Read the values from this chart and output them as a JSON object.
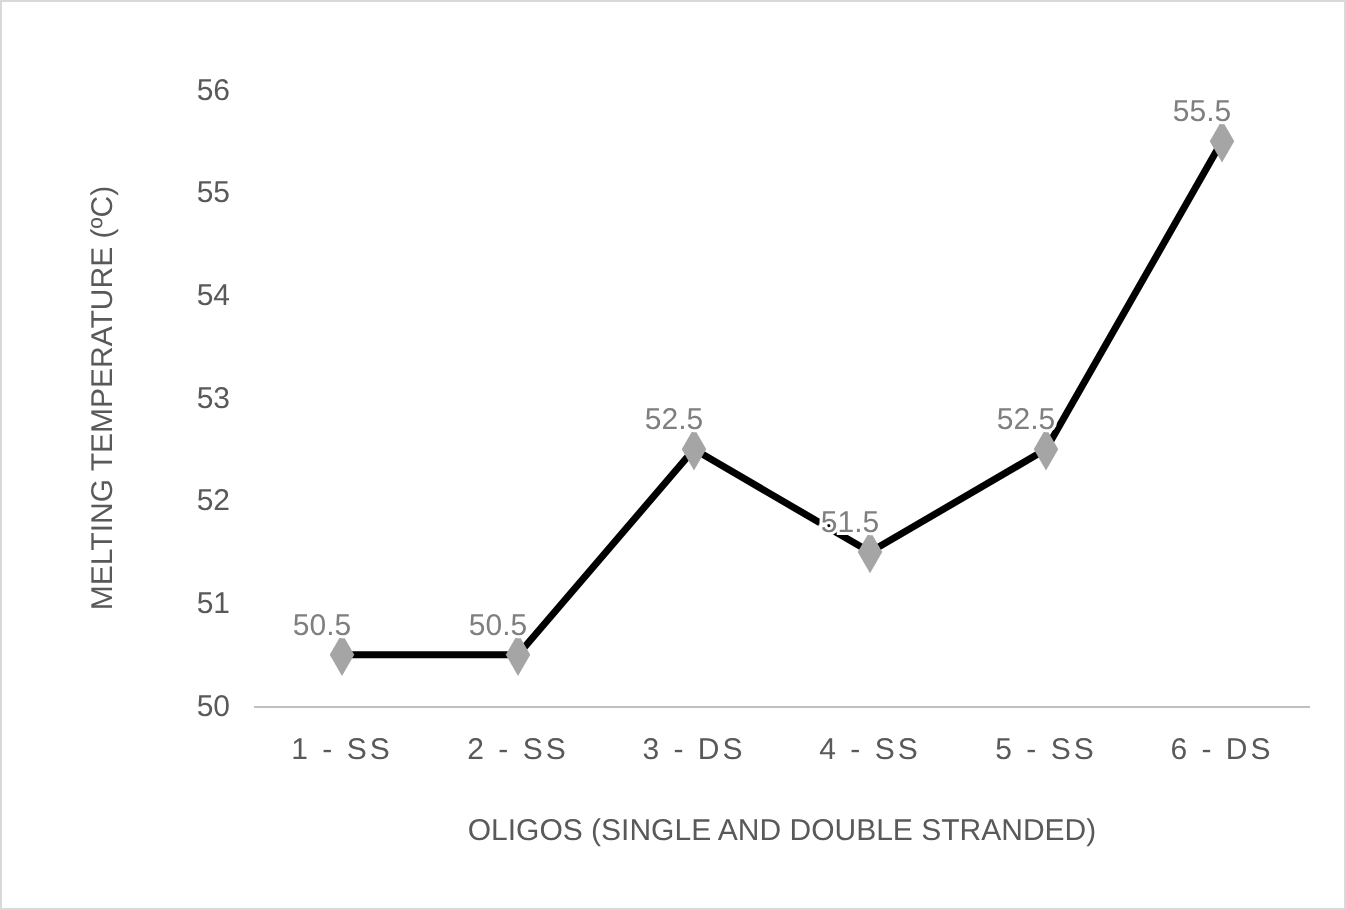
{
  "chart_data": {
    "type": "line",
    "xlabel": "OLIGOS (SINGLE AND DOUBLE STRANDED)",
    "ylabel": "MELTING TEMPERATURE (ºC)",
    "categories": [
      "1 - SS",
      "2 - SS",
      "3 - DS",
      "4 - SS",
      "5 - SS",
      "6 - DS"
    ],
    "series": [
      {
        "color": "#000000",
        "values": [
          50.5,
          50.5,
          52.5,
          51.5,
          52.5,
          55.5
        ]
      }
    ],
    "ylim": [
      50,
      56
    ],
    "yticks": [
      50,
      51,
      52,
      53,
      54,
      55,
      56
    ],
    "grid": false,
    "marker": "diamond",
    "data_labels": true,
    "legend": false
  }
}
